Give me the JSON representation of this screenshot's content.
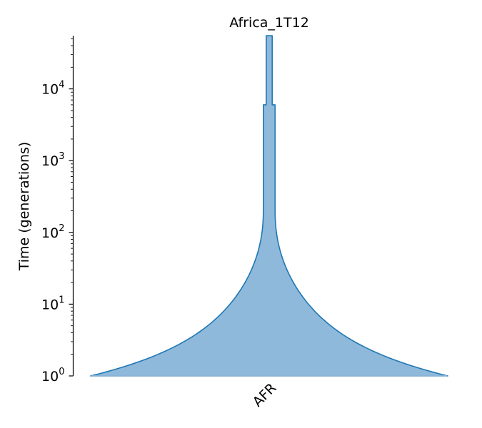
{
  "chart_data": {
    "type": "area",
    "title": "Africa_1T12",
    "ylabel": "Time (generations)",
    "yscale": "log",
    "ylim": [
      1,
      50000
    ],
    "y_ticks": [
      {
        "value": 1,
        "base": "10",
        "exp": "0"
      },
      {
        "value": 10,
        "base": "10",
        "exp": "1"
      },
      {
        "value": 100,
        "base": "10",
        "exp": "2"
      },
      {
        "value": 1000,
        "base": "10",
        "exp": "3"
      },
      {
        "value": 10000,
        "base": "10",
        "exp": "4"
      }
    ],
    "grid": false,
    "demes": [
      {
        "name": "AFR",
        "color": "#8fb9da",
        "edge_color": "#1f77b4",
        "epochs": [
          {
            "start_time": 50000,
            "end_time": 6000,
            "shape": "constant",
            "relative_width": 0.016
          },
          {
            "start_time": 6000,
            "end_time": 205,
            "shape": "constant",
            "relative_width": 0.034
          },
          {
            "start_time": 205,
            "end_time": 0,
            "shape": "exponential",
            "relative_width_start": 0.034,
            "relative_width_end": 1.0
          }
        ]
      }
    ]
  }
}
